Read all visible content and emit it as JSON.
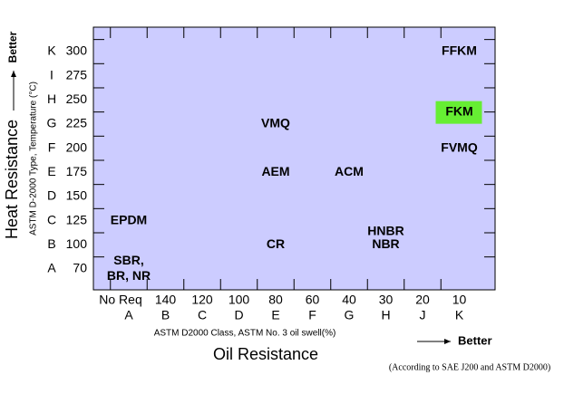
{
  "chart_data": {
    "type": "label-grid",
    "x_classes": [
      "A",
      "B",
      "C",
      "D",
      "E",
      "F",
      "G",
      "H",
      "J",
      "K"
    ],
    "x_swell": [
      "No Req",
      "140",
      "120",
      "100",
      "80",
      "60",
      "40",
      "30",
      "20",
      "10"
    ],
    "y_types": [
      "A",
      "B",
      "C",
      "D",
      "E",
      "F",
      "G",
      "H",
      "I",
      "K"
    ],
    "y_temps": [
      70,
      100,
      125,
      150,
      175,
      200,
      225,
      250,
      275,
      300
    ],
    "x_label": "ASTM D2000 Class, ASTM No. 3 oil  swell(%)",
    "x_title": "Oil Resistance",
    "x_better": "Better",
    "y_label": "ASTM D-2000 Type, Temperature (°C)",
    "y_title": "Heat Resistance",
    "y_better": "Better",
    "note": "(According to SAE J200 and ASTM D2000)",
    "background": "#ccccff",
    "highlight_color": "#66ee33",
    "points": [
      {
        "lines": [
          "SBR,",
          "BR, NR"
        ],
        "class": "A",
        "type": "A"
      },
      {
        "lines": [
          "EPDM"
        ],
        "class": "A",
        "type": "C"
      },
      {
        "lines": [
          "CR"
        ],
        "class": "E",
        "type": "B"
      },
      {
        "lines": [
          "NBR"
        ],
        "class": "H",
        "type": "B"
      },
      {
        "lines": [
          "HNBR"
        ],
        "class": "H",
        "type": "C"
      },
      {
        "lines": [
          "AEM"
        ],
        "class": "E",
        "type": "E"
      },
      {
        "lines": [
          "ACM"
        ],
        "class": "G",
        "type": "E"
      },
      {
        "lines": [
          "VMQ"
        ],
        "class": "E",
        "type": "G"
      },
      {
        "lines": [
          "FKM"
        ],
        "class": "K",
        "type": "G",
        "highlight": true
      },
      {
        "lines": [
          "FVMQ"
        ],
        "class": "K",
        "type": "F"
      },
      {
        "lines": [
          "FFKM"
        ],
        "class": "K",
        "type": "K"
      }
    ]
  }
}
